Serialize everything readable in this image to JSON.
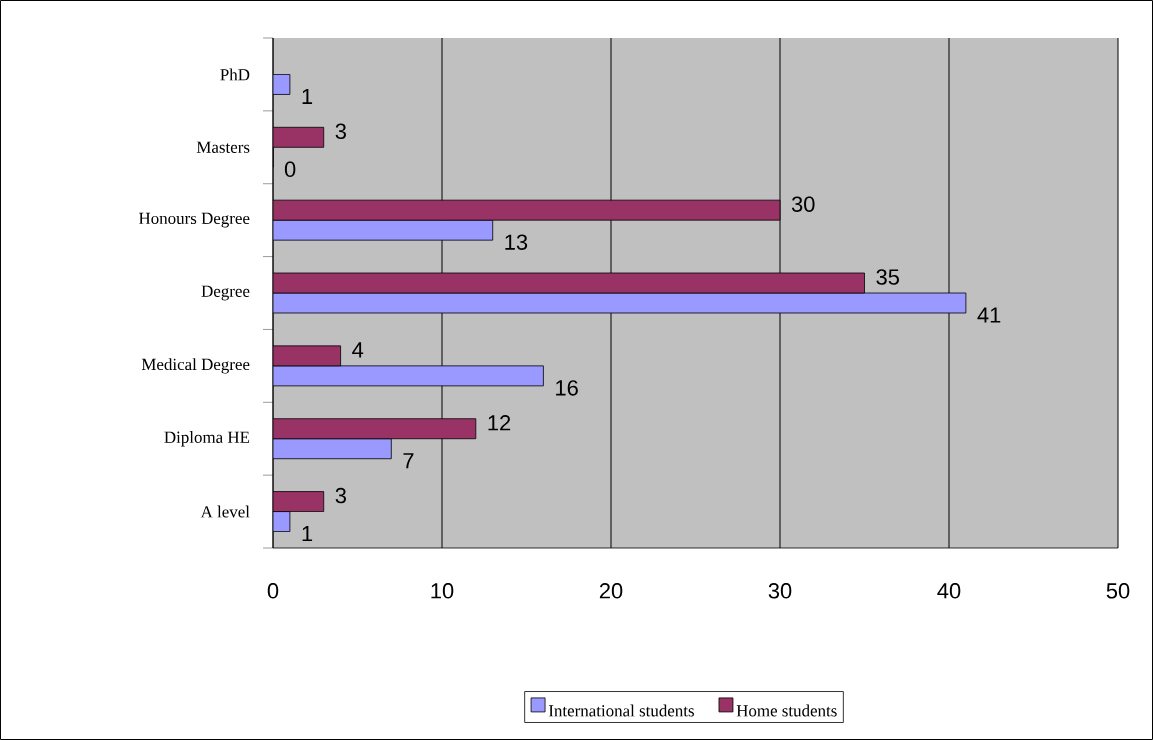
{
  "chart_data": {
    "type": "bar",
    "orientation": "horizontal",
    "categories": [
      "PhD",
      "Masters",
      "Honours Degree",
      "Degree",
      "Medical Degree",
      "Diploma HE",
      "A level"
    ],
    "series": [
      {
        "name": "International students",
        "color": "#9999ff",
        "values": [
          1,
          0,
          13,
          41,
          16,
          7,
          1
        ]
      },
      {
        "name": "Home students",
        "color": "#993366",
        "values": [
          null,
          3,
          30,
          35,
          4,
          12,
          3
        ]
      }
    ],
    "xlim": [
      0,
      50
    ],
    "xticks": [
      0,
      10,
      20,
      30,
      40,
      50
    ],
    "grid": "x",
    "legend": "bottom",
    "data_labels": true
  }
}
